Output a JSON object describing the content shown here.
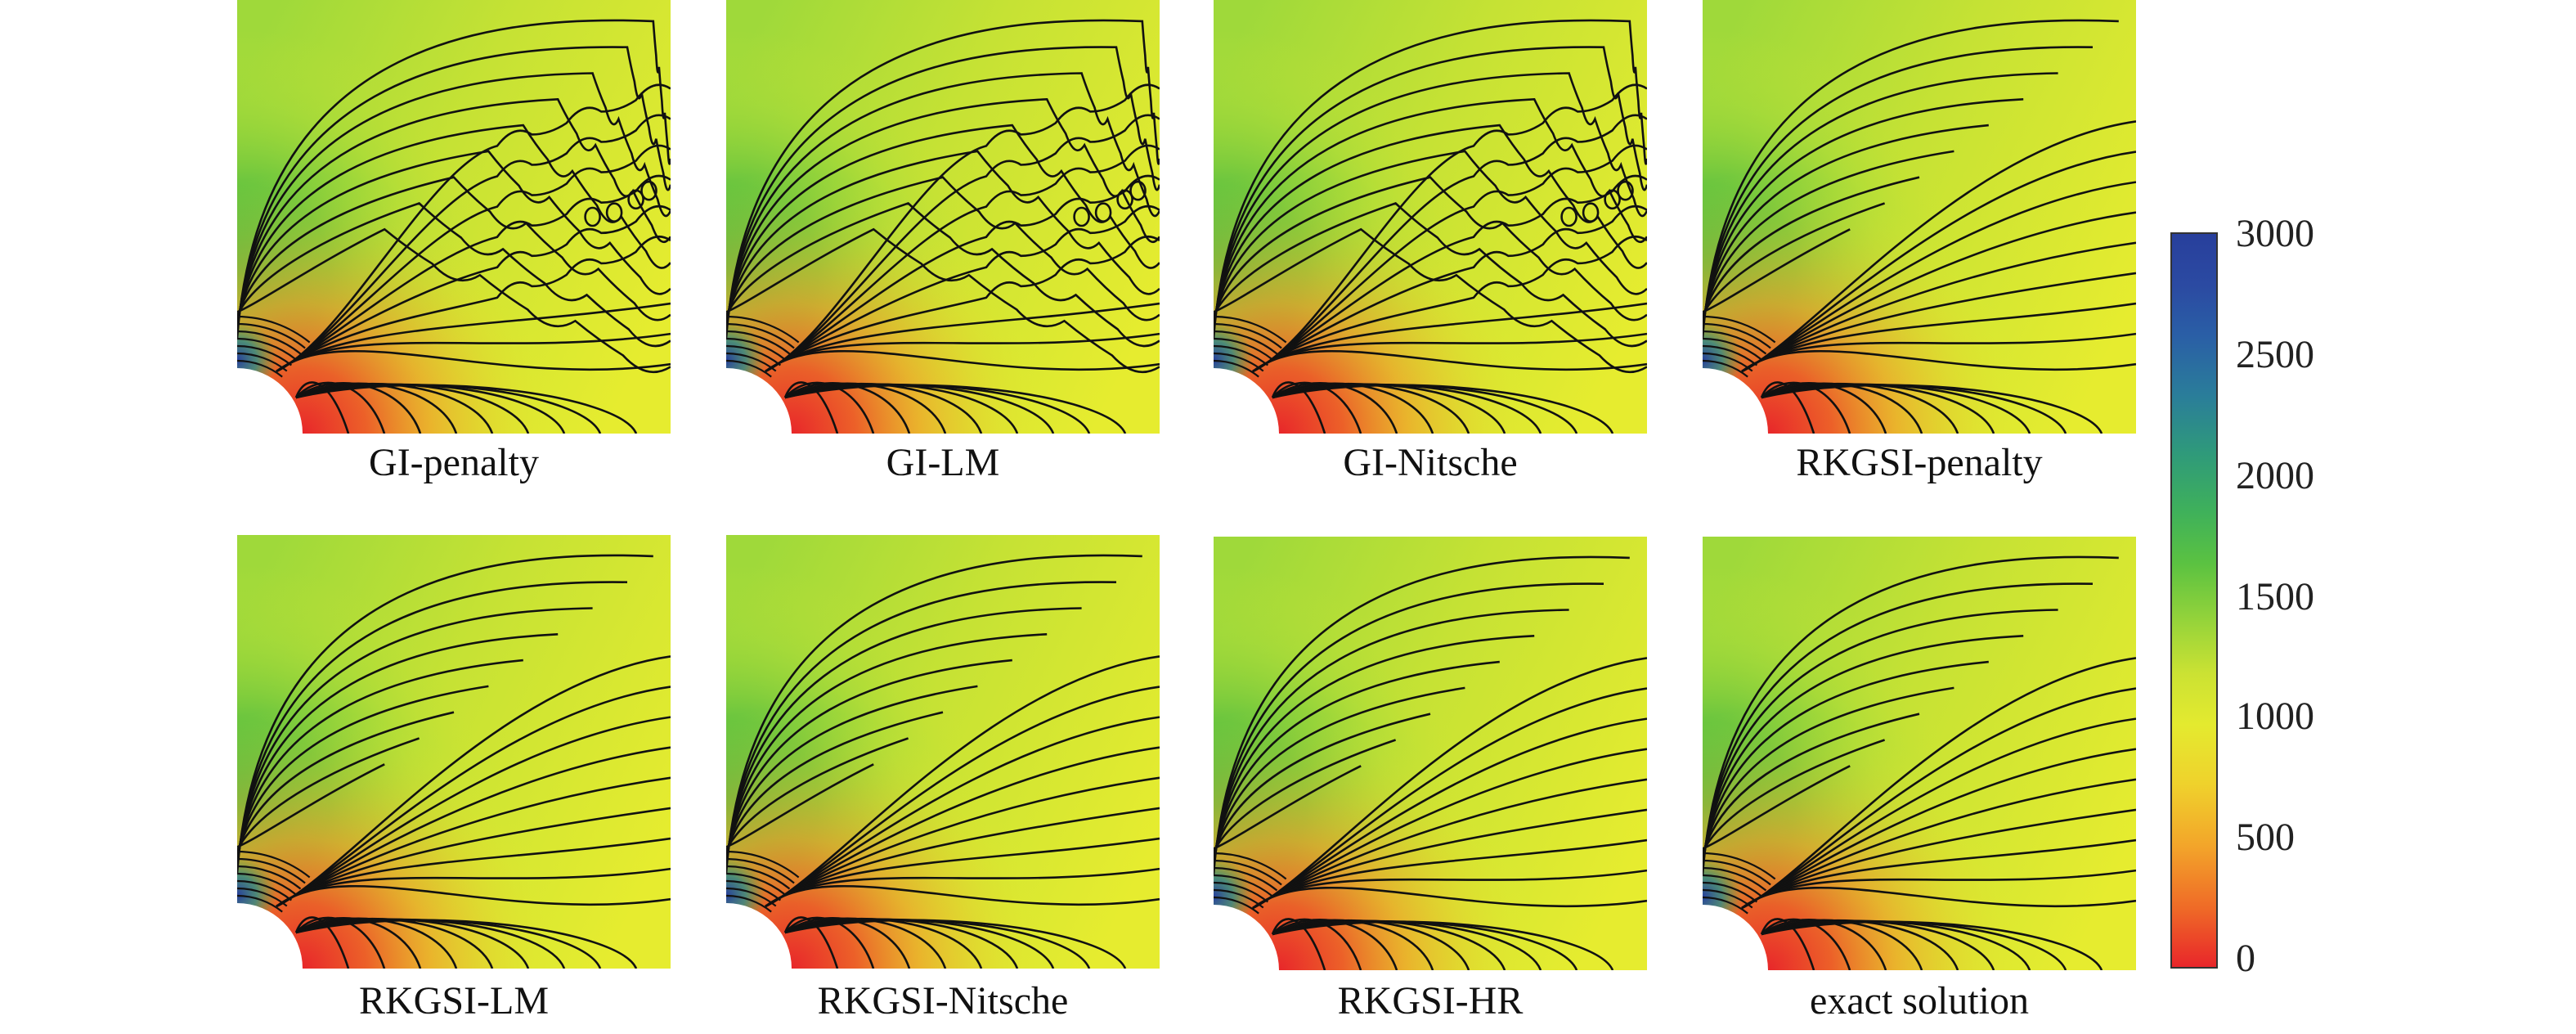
{
  "panels": [
    {
      "label": "GI-penalty",
      "noisy": true
    },
    {
      "label": "GI-LM",
      "noisy": true
    },
    {
      "label": "GI-Nitsche",
      "noisy": true
    },
    {
      "label": "RKGSI-penalty",
      "noisy": false
    },
    {
      "label": "RKGSI-LM",
      "noisy": false
    },
    {
      "label": "RKGSI-Nitsche",
      "noisy": false
    },
    {
      "label": "RKGSI-HR",
      "noisy": false
    },
    {
      "label": "exact solution",
      "noisy": false
    }
  ],
  "colorbar": {
    "ticks": [
      "3000",
      "2500",
      "2000",
      "1500",
      "1000",
      "500",
      "0"
    ],
    "min": 0,
    "max": 3000,
    "colors": {
      "low": "#e8262a",
      "mid": "#e4ea2f",
      "green": "#5bc241",
      "high": "#283f9c"
    }
  }
}
